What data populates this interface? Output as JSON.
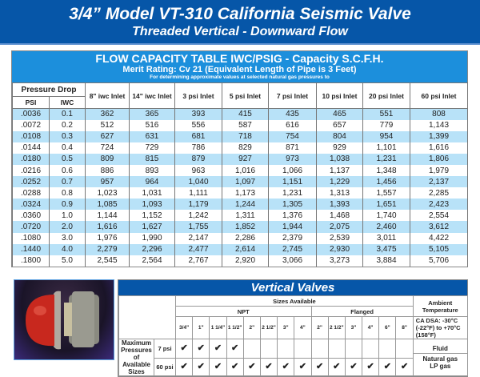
{
  "header": {
    "title": "3/4” Model VT-310 California Seismic Valve",
    "subtitle": "Threaded Vertical - Downward Flow"
  },
  "flow_table": {
    "title": "FLOW CAPACITY TABLE IWC/PSIG - Capacity S.C.F.H.",
    "merit": "Merit Rating: Cv 21 (Equivalent Length of Pipe is 3 Feet)",
    "note": "For determining approximate values at selected natural gas pressures to",
    "group_header": "Pressure Drop",
    "columns": [
      "PSI",
      "IWC",
      "8\" iwc Inlet",
      "14\" iwc Inlet",
      "3 psi Inlet",
      "5 psi Inlet",
      "7 psi Inlet",
      "10 psi Inlet",
      "20 psi Inlet",
      "60 psi Inlet"
    ],
    "rows": [
      [
        ".0036",
        "0.1",
        "362",
        "365",
        "393",
        "415",
        "435",
        "465",
        "551",
        "808"
      ],
      [
        ".0072",
        "0.2",
        "512",
        "516",
        "556",
        "587",
        "616",
        "657",
        "779",
        "1,143"
      ],
      [
        ".0108",
        "0.3",
        "627",
        "631",
        "681",
        "718",
        "754",
        "804",
        "954",
        "1,399"
      ],
      [
        ".0144",
        "0.4",
        "724",
        "729",
        "786",
        "829",
        "871",
        "929",
        "1,101",
        "1,616"
      ],
      [
        ".0180",
        "0.5",
        "809",
        "815",
        "879",
        "927",
        "973",
        "1,038",
        "1,231",
        "1,806"
      ],
      [
        ".0216",
        "0.6",
        "886",
        "893",
        "963",
        "1,016",
        "1,066",
        "1,137",
        "1,348",
        "1,979"
      ],
      [
        ".0252",
        "0.7",
        "957",
        "964",
        "1,040",
        "1,097",
        "1,151",
        "1,229",
        "1,456",
        "2,137"
      ],
      [
        ".0288",
        "0.8",
        "1,023",
        "1,031",
        "1,111",
        "1,173",
        "1,231",
        "1,313",
        "1,557",
        "2,285"
      ],
      [
        ".0324",
        "0.9",
        "1,085",
        "1,093",
        "1,179",
        "1,244",
        "1,305",
        "1,393",
        "1,651",
        "2,423"
      ],
      [
        ".0360",
        "1.0",
        "1,144",
        "1,152",
        "1,242",
        "1,311",
        "1,376",
        "1,468",
        "1,740",
        "2,554"
      ],
      [
        ".0720",
        "2.0",
        "1,616",
        "1,627",
        "1,755",
        "1,852",
        "1,944",
        "2,075",
        "2,460",
        "3,612"
      ],
      [
        ".1080",
        "3.0",
        "1,976",
        "1,990",
        "2,147",
        "2,286",
        "2,379",
        "2,539",
        "3,011",
        "4,422"
      ],
      [
        ".1440",
        "4.0",
        "2,279",
        "2,296",
        "2,477",
        "2,614",
        "2,745",
        "2,930",
        "3,475",
        "5,105"
      ],
      [
        ".1800",
        "5.0",
        "2,545",
        "2,564",
        "2,767",
        "2,920",
        "3,066",
        "3,273",
        "3,884",
        "5,706"
      ]
    ]
  },
  "vertical_valves": {
    "title": "Vertical Valves",
    "sizes_available": "Sizes Available",
    "npt": "NPT",
    "flanged": "Flanged",
    "npt_sizes": [
      "3/4\"",
      "1\"",
      "1 1/4\"",
      "1 1/2\"",
      "2\"",
      "2 1/2\"",
      "3\"",
      "4\""
    ],
    "flanged_sizes": [
      "2\"",
      "2 1/2\"",
      "3\"",
      "4\"",
      "6\"",
      "8\""
    ],
    "row_label": "Maximum Pressures of Available Sizes",
    "pressures": [
      {
        "label": "7 psi",
        "checks": [
          true,
          true,
          true,
          true,
          false,
          false,
          false,
          false,
          false,
          false,
          false,
          false,
          false,
          false
        ]
      },
      {
        "label": "60 psi",
        "checks": [
          true,
          true,
          true,
          true,
          true,
          true,
          true,
          true,
          true,
          true,
          true,
          true,
          true,
          true
        ]
      }
    ],
    "check_mark": "✔",
    "ambient_label": "Ambient Temperature",
    "ambient_value": "CA DSA: -30°C (-22°F) to +70°C (158°F)",
    "fluid_label": "Fluid",
    "fluid_value": "Natural gas LP gas"
  }
}
